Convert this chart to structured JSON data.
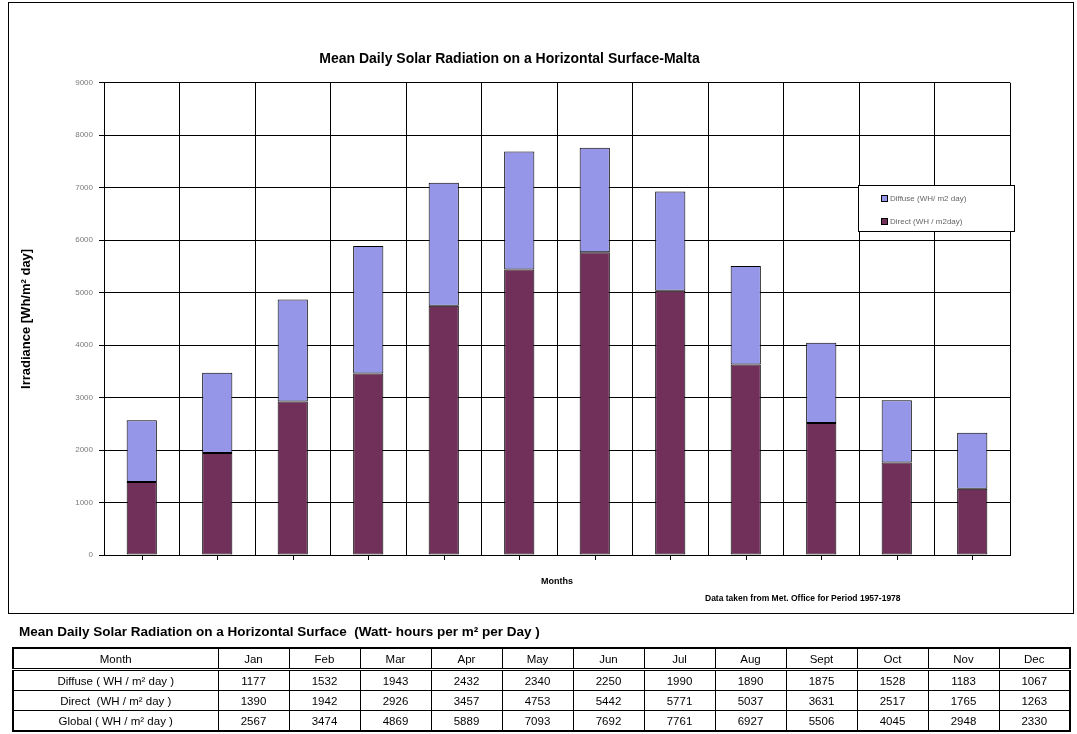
{
  "chart_data": [
    {
      "type": "bar",
      "title": "Mean Daily Solar Radiation on a Horizontal Surface-Malta",
      "xlabel": "Months",
      "ylabel": "Irradiance [Wh/m² day]",
      "categories": [
        null,
        null,
        null,
        null,
        null,
        null,
        null,
        null,
        null,
        null,
        null,
        null
      ],
      "series": [
        {
          "name": "Direct (WH / m2day)",
          "color": "#71305a",
          "values": [
            1390,
            1942,
            2926,
            3457,
            4753,
            5442,
            5771,
            5037,
            3631,
            2517,
            1765,
            1263
          ]
        },
        {
          "name": "Diffuse (WH/ m2 day)",
          "color": "#9696e8",
          "values": [
            1177,
            1532,
            1943,
            2432,
            2340,
            2250,
            1990,
            1890,
            1875,
            1528,
            1183,
            1067
          ]
        }
      ],
      "stacked": true,
      "ylim": [
        0,
        9000
      ],
      "yticks": [
        0,
        1000,
        2000,
        3000,
        4000,
        5000,
        6000,
        7000,
        8000,
        9000
      ],
      "grid": true,
      "legend": "right",
      "annotations": [
        "Data taken from Met. Office for Period 1957-1978"
      ]
    },
    {
      "type": "other",
      "title": "Mean Daily Solar Radiation on a Horizontal Surface  (Watt- hours per m² per Day )",
      "categories": [
        "Jan",
        "Feb",
        "Mar",
        "Apr",
        "May",
        "Jun",
        "Jul",
        "Aug",
        "Sept",
        "Oct",
        "Nov",
        "Dec"
      ],
      "series": [
        {
          "name": "Diffuse ( WH / m² day )",
          "values": [
            1177,
            1532,
            1943,
            2432,
            2340,
            2250,
            1990,
            1890,
            1875,
            1528,
            1183,
            1067
          ]
        },
        {
          "name": "Direct  (WH / m² day )",
          "values": [
            1390,
            1942,
            2926,
            3457,
            4753,
            5442,
            5771,
            5037,
            3631,
            2517,
            1765,
            1263
          ]
        },
        {
          "name": "Global ( WH / m² day )",
          "values": [
            2567,
            3474,
            4869,
            5889,
            7093,
            7692,
            7761,
            6927,
            5506,
            4045,
            2948,
            2330
          ]
        }
      ],
      "data_labels": true,
      "annotations": [
        "Month"
      ]
    }
  ]
}
